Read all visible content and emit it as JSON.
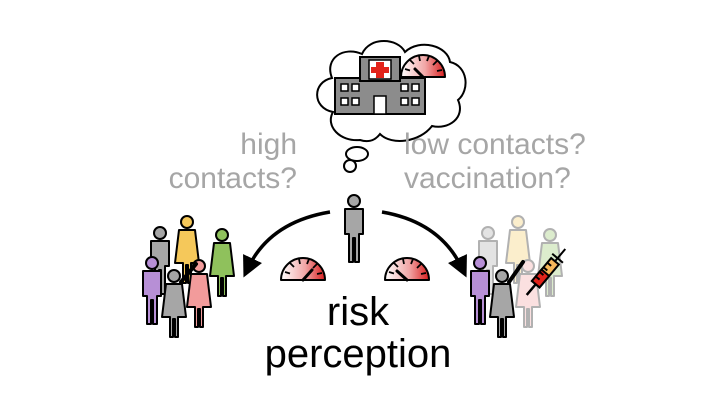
{
  "labels": {
    "high_line1": "high",
    "high_line2": "contacts?",
    "low_line1": "low contacts?",
    "low_line2": "vaccination?",
    "risk_line1": "risk",
    "risk_line2": "perception"
  },
  "icons": [
    "thought-bubble",
    "hospital-icon",
    "gauge-icon",
    "person-icon",
    "crowd-icon",
    "syringe-icon"
  ],
  "colors": {
    "text_grey": "#a6a6a6",
    "text_black": "#000000",
    "person_grey": "#a6a6a6",
    "purple": "#b78fd6",
    "yellow": "#f5c85a",
    "green": "#8fc15c",
    "pink": "#f29b9b",
    "gauge_red": "#d91e1e",
    "cross_red": "#e2231a"
  }
}
